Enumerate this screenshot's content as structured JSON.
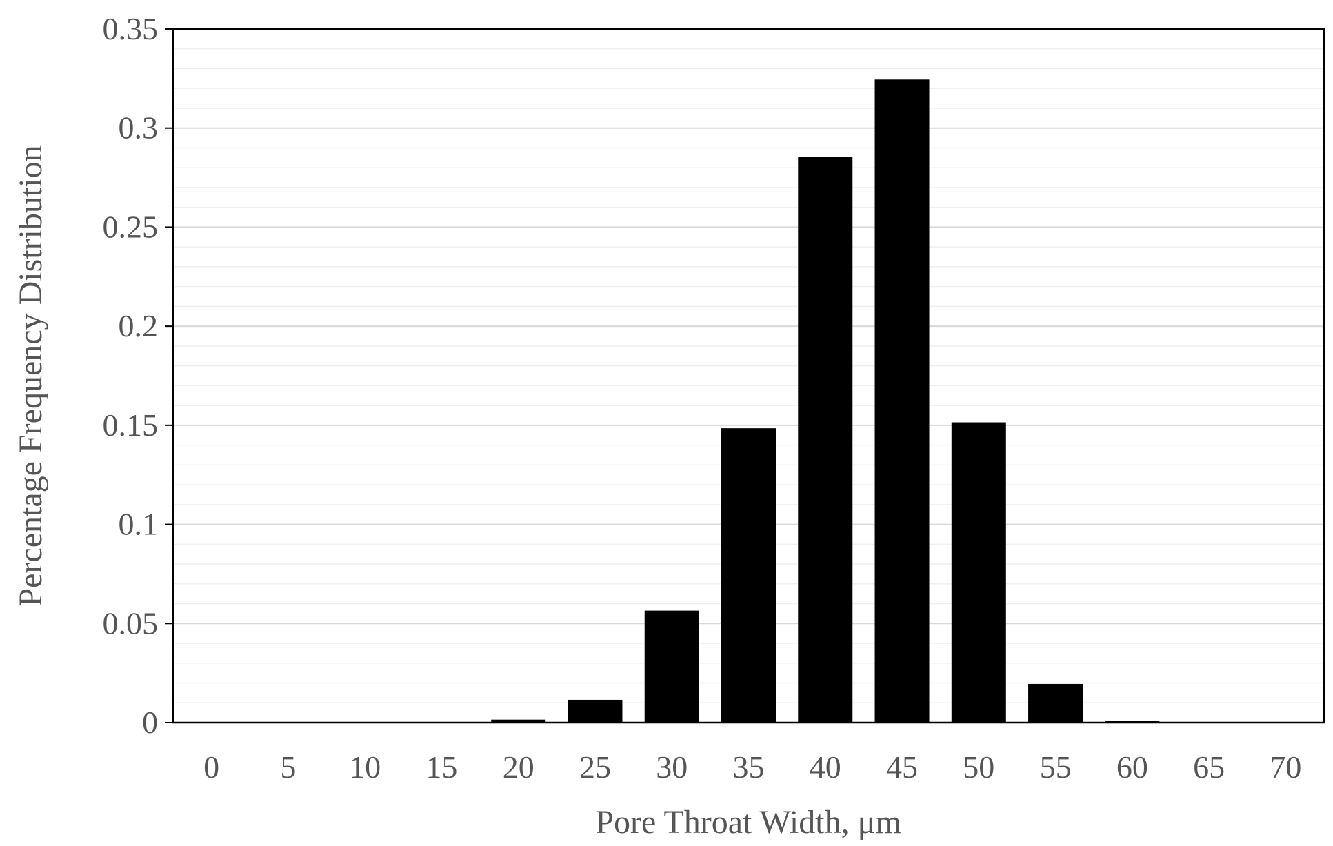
{
  "chart_data": {
    "type": "bar",
    "title": "",
    "xlabel": "Pore Throat Width, μm",
    "ylabel": "Percentage Frequency Distribution",
    "categories": [
      "0",
      "5",
      "10",
      "15",
      "20",
      "25",
      "30",
      "35",
      "40",
      "45",
      "50",
      "55",
      "60",
      "65",
      "70"
    ],
    "values": [
      0,
      0,
      0,
      0,
      0.0015,
      0.0115,
      0.0565,
      0.1485,
      0.2855,
      0.3245,
      0.1515,
      0.0195,
      0.0008,
      0,
      0
    ],
    "ylim": [
      0,
      0.35
    ],
    "yticks": [
      "0",
      "0.05",
      "0.1",
      "0.15",
      "0.2",
      "0.25",
      "0.3",
      "0.35"
    ],
    "grid": true,
    "legend": "none",
    "colors": {
      "bar": "#000000",
      "major_grid": "#d9d9d9",
      "minor_grid": "#efefef",
      "axis": "#000000",
      "text": "#555555"
    }
  }
}
